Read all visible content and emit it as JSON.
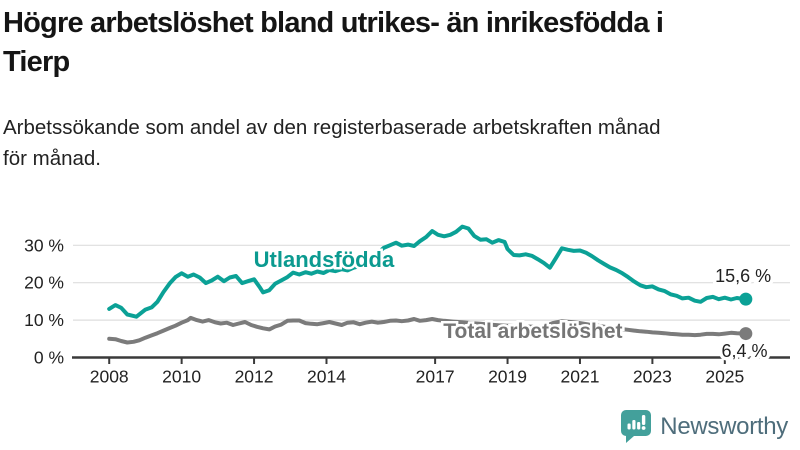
{
  "header": {
    "title_line1": "Högre arbetslöshet bland utrikes- än inrikesfödda i",
    "title_line2": "Tierp",
    "subtitle_line1": "Arbetssökande som andel av den registerbaserade arbetskraften månad",
    "subtitle_line2": "för månad."
  },
  "chart_data": {
    "type": "line",
    "title": "Högre arbetslöshet bland utrikes- än inrikesfödda i Tierp",
    "subtitle": "Arbetssökande som andel av den registerbaserade arbetskraften månad för månad.",
    "grid": true,
    "grid_color": "#dedede",
    "axis_color": "#3a3a3a",
    "tick_color": "#222222",
    "xlim": [
      2007.0,
      2026.8
    ],
    "ylim": [
      0,
      37
    ],
    "x_ticks": [
      2008,
      2010,
      2012,
      2014,
      2017,
      2019,
      2021,
      2023,
      2025
    ],
    "x_tick_labels": [
      "2008",
      "2010",
      "2012",
      "2014",
      "2017",
      "2019",
      "2021",
      "2023",
      "2025"
    ],
    "y_ticks": [
      0,
      10,
      20,
      30
    ],
    "y_tick_suffix": " %",
    "legend_position": "inline-labels",
    "series": [
      {
        "name": "Utlandsfödda",
        "color": "#0ba196",
        "label": "Utlandsfödda",
        "label_color": "#0b9a90",
        "label_pos": {
          "x": 2013.93,
          "y": 24.2
        },
        "label_size": 22,
        "end_label": "15,6 %",
        "end_label_pos": {
          "x": 2026.28,
          "y": 20.2
        },
        "x": [
          2008.0,
          2008.17,
          2008.33,
          2008.5,
          2008.75,
          2009.0,
          2009.17,
          2009.33,
          2009.5,
          2009.67,
          2009.83,
          2010.0,
          2010.17,
          2010.33,
          2010.5,
          2010.67,
          2010.83,
          2011.0,
          2011.17,
          2011.33,
          2011.5,
          2011.67,
          2011.83,
          2012.0,
          2012.17,
          2012.25,
          2012.42,
          2012.58,
          2012.75,
          2012.92,
          2013.08,
          2013.25,
          2013.42,
          2013.58,
          2013.75,
          2013.92,
          2014.08,
          2014.25,
          2014.42,
          2014.58,
          2014.75,
          2014.92,
          2015.08,
          2015.25,
          2015.42,
          2015.58,
          2015.75,
          2015.92,
          2016.08,
          2016.25,
          2016.42,
          2016.58,
          2016.75,
          2016.92,
          2017.08,
          2017.25,
          2017.42,
          2017.58,
          2017.75,
          2017.92,
          2018.08,
          2018.25,
          2018.42,
          2018.58,
          2018.75,
          2018.92,
          2019.0,
          2019.17,
          2019.33,
          2019.5,
          2019.67,
          2019.83,
          2020.0,
          2020.17,
          2020.33,
          2020.5,
          2020.67,
          2020.83,
          2021.0,
          2021.17,
          2021.33,
          2021.5,
          2021.67,
          2021.83,
          2022.0,
          2022.17,
          2022.33,
          2022.5,
          2022.67,
          2022.83,
          2023.0,
          2023.17,
          2023.33,
          2023.5,
          2023.67,
          2023.83,
          2024.0,
          2024.17,
          2024.33,
          2024.5,
          2024.67,
          2024.83,
          2025.0,
          2025.17,
          2025.33,
          2025.58
        ],
        "y": [
          13.0,
          14.0,
          13.3,
          11.5,
          10.9,
          12.8,
          13.4,
          14.9,
          17.5,
          19.8,
          21.5,
          22.5,
          21.6,
          22.2,
          21.4,
          19.9,
          20.6,
          21.6,
          20.4,
          21.4,
          21.8,
          19.9,
          20.4,
          20.9,
          18.6,
          17.4,
          18.0,
          19.7,
          20.6,
          21.5,
          22.7,
          22.2,
          22.8,
          22.4,
          23.0,
          22.6,
          23.4,
          23.1,
          23.6,
          23.3,
          24.0,
          24.4,
          25.2,
          26.3,
          28.0,
          29.3,
          30.0,
          30.7,
          29.9,
          30.2,
          29.8,
          31.1,
          32.2,
          33.8,
          32.8,
          32.4,
          32.8,
          33.6,
          35.0,
          34.5,
          32.5,
          31.5,
          31.6,
          30.7,
          31.4,
          30.9,
          29.0,
          27.4,
          27.3,
          27.6,
          27.2,
          26.3,
          25.3,
          24.0,
          26.5,
          29.2,
          28.8,
          28.5,
          28.6,
          28.0,
          27.1,
          26.0,
          25.0,
          24.1,
          23.4,
          22.5,
          21.5,
          20.3,
          19.3,
          18.8,
          19.0,
          18.2,
          17.8,
          16.9,
          16.5,
          15.8,
          16.0,
          15.2,
          14.9,
          15.9,
          16.2,
          15.6,
          16.0,
          15.5,
          15.9,
          15.6
        ]
      },
      {
        "name": "Total arbetslöshet",
        "color": "#7b7b7b",
        "label": "Total arbetslöshet",
        "label_color": "#757575",
        "label_pos": {
          "x": 2019.7,
          "y": 5.2
        },
        "label_size": 21,
        "end_label": "6,4 %",
        "end_label_pos": {
          "x": 2026.18,
          "y": 0.15
        },
        "x": [
          2008.0,
          2008.17,
          2008.33,
          2008.5,
          2008.67,
          2008.83,
          2009.0,
          2009.17,
          2009.33,
          2009.5,
          2009.67,
          2009.83,
          2010.0,
          2010.17,
          2010.25,
          2010.42,
          2010.58,
          2010.75,
          2010.92,
          2011.08,
          2011.25,
          2011.42,
          2011.58,
          2011.75,
          2011.92,
          2012.08,
          2012.25,
          2012.42,
          2012.58,
          2012.75,
          2012.92,
          2013.08,
          2013.25,
          2013.42,
          2013.58,
          2013.75,
          2013.92,
          2014.08,
          2014.25,
          2014.42,
          2014.58,
          2014.75,
          2014.92,
          2015.08,
          2015.25,
          2015.42,
          2015.58,
          2015.75,
          2015.92,
          2016.08,
          2016.25,
          2016.42,
          2016.58,
          2016.75,
          2016.92,
          2017.08,
          2017.25,
          2017.5,
          2017.75,
          2018.0,
          2018.25,
          2018.5,
          2018.75,
          2019.0,
          2019.25,
          2019.5,
          2019.75,
          2020.0,
          2020.25,
          2020.5,
          2020.75,
          2021.0,
          2021.25,
          2021.5,
          2021.75,
          2022.0,
          2022.17,
          2022.33,
          2022.5,
          2022.67,
          2022.83,
          2023.0,
          2023.17,
          2023.33,
          2023.5,
          2023.67,
          2023.83,
          2024.0,
          2024.17,
          2024.33,
          2024.5,
          2024.67,
          2024.83,
          2025.0,
          2025.17,
          2025.33,
          2025.58
        ],
        "y": [
          5.0,
          4.9,
          4.4,
          4.0,
          4.2,
          4.6,
          5.3,
          5.9,
          6.5,
          7.2,
          7.9,
          8.5,
          9.3,
          10.0,
          10.6,
          10.0,
          9.6,
          10.0,
          9.4,
          9.1,
          9.3,
          8.7,
          9.1,
          9.5,
          8.7,
          8.2,
          7.8,
          7.5,
          8.3,
          8.8,
          9.8,
          9.9,
          9.9,
          9.2,
          9.0,
          8.9,
          9.2,
          9.5,
          9.1,
          8.7,
          9.3,
          9.4,
          8.9,
          9.3,
          9.6,
          9.3,
          9.5,
          9.8,
          9.9,
          9.7,
          9.9,
          10.3,
          9.8,
          10.0,
          10.3,
          10.0,
          9.8,
          9.6,
          9.4,
          9.2,
          9.0,
          8.8,
          8.6,
          8.5,
          8.4,
          8.3,
          8.2,
          8.3,
          9.2,
          9.7,
          9.5,
          9.2,
          8.8,
          8.5,
          8.1,
          7.8,
          7.6,
          7.4,
          7.2,
          7.0,
          6.9,
          6.7,
          6.6,
          6.5,
          6.3,
          6.2,
          6.1,
          6.1,
          6.0,
          6.1,
          6.3,
          6.3,
          6.2,
          6.4,
          6.6,
          6.5,
          6.4
        ]
      }
    ]
  },
  "footer": {
    "brand": "Newsworthy",
    "brand_icon": "newsworthy-speech-bubble-bar-chart-icon",
    "brand_icon_color": "#43a09b",
    "brand_text_color": "#4e6d7b"
  }
}
